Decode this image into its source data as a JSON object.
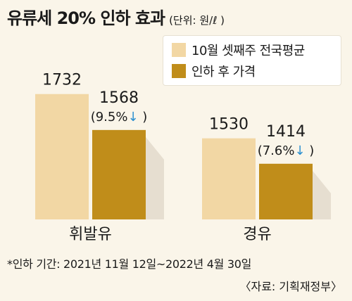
{
  "title": "유류세 20% 인하 효과",
  "unit": "(단위: 원/ℓ )",
  "legend": [
    {
      "label": "10월 셋째주 전국평균",
      "color": "#f2d7a4"
    },
    {
      "label": "인하 후 가격",
      "color": "#c08d1a"
    }
  ],
  "chart_data": {
    "type": "bar",
    "title": "유류세 20% 인하 효과",
    "unit": "원/ℓ",
    "categories": [
      "휘발유",
      "경유"
    ],
    "series": [
      {
        "name": "10월 셋째주 전국평균",
        "values": [
          1732,
          1530
        ],
        "color": "#f2d7a4"
      },
      {
        "name": "인하 후 가격",
        "values": [
          1568,
          1414
        ],
        "color": "#c08d1a"
      }
    ],
    "annotations": [
      {
        "category": "휘발유",
        "text": "(9.5%",
        "arrow": "↓",
        "close": ")"
      },
      {
        "category": "경유",
        "text": "(7.6%",
        "arrow": "↓",
        "close": ")"
      }
    ],
    "ylim": [
      1160,
      1760
    ],
    "legend_position": "top-right",
    "grid": false,
    "arrow_color": "#2a8fd0"
  },
  "footnote": "*인하 기간:  2021년 11월 12일~2022년 4월 30일",
  "source": "〈자료: 기획재정부〉"
}
